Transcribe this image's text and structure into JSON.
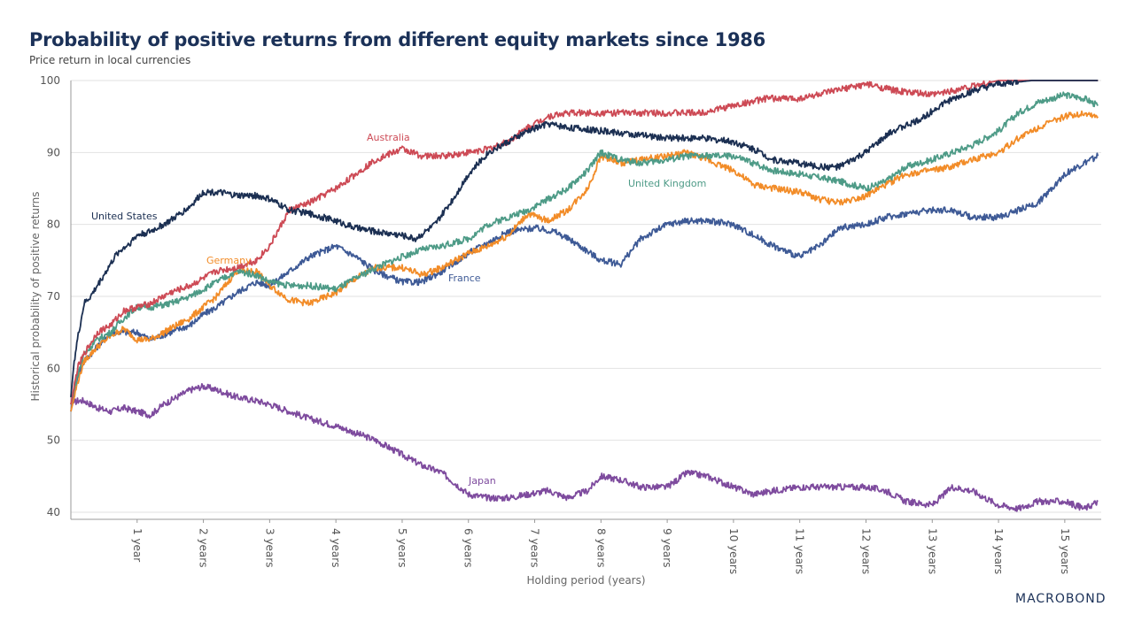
{
  "title": "Probability of positive returns from different equity markets since 1986",
  "subtitle": "Price return in local currencies",
  "logo": "MACROBOND",
  "chart_data": {
    "type": "line",
    "xlabel": "Holding period (years)",
    "ylabel": "Historical probability of positive returns",
    "xlim": [
      0,
      15.55
    ],
    "ylim": [
      40,
      100
    ],
    "yticks": [
      40,
      50,
      60,
      70,
      80,
      90,
      100
    ],
    "xticks": [
      1,
      2,
      3,
      4,
      5,
      6,
      7,
      8,
      9,
      10,
      11,
      12,
      13,
      14,
      15
    ],
    "xtick_labels": [
      "1 year",
      "2 years",
      "3 years",
      "4 years",
      "5 years",
      "6 years",
      "7 years",
      "8 years",
      "9 years",
      "10 years",
      "11 years",
      "12 years",
      "13 years",
      "14 years",
      "15 years"
    ],
    "grid": true,
    "series": [
      {
        "name": "United States",
        "color": "#1b2f52",
        "x": [
          0,
          0.05,
          0.1,
          0.2,
          0.3,
          0.5,
          0.7,
          0.9,
          1,
          1.2,
          1.5,
          1.8,
          2,
          2.2,
          2.5,
          2.8,
          3,
          3.3,
          3.6,
          4,
          4.3,
          4.6,
          5,
          5.2,
          5.5,
          5.8,
          6,
          6.3,
          6.6,
          6.9,
          7.2,
          7.5,
          8,
          8.5,
          9,
          9.5,
          10,
          10.3,
          10.6,
          11,
          11.3,
          11.6,
          12,
          12.4,
          12.8,
          13.2,
          13.6,
          14,
          14.5,
          15,
          15.5
        ],
        "y": [
          56,
          61,
          64,
          69,
          70,
          73,
          76,
          77.5,
          78.5,
          79,
          80.5,
          82.5,
          84.5,
          84.5,
          84,
          84,
          83.5,
          82,
          81.5,
          80.5,
          79.5,
          79,
          78.5,
          78,
          80,
          84,
          87,
          90,
          91.5,
          93,
          94,
          93.5,
          93,
          92.5,
          92,
          92,
          91.5,
          90.5,
          89,
          88.5,
          88,
          88,
          90,
          93,
          94.5,
          97,
          98.5,
          99.5,
          100,
          100,
          100
        ]
      },
      {
        "name": "Australia",
        "color": "#cd4a55",
        "x": [
          0,
          0.1,
          0.2,
          0.4,
          0.6,
          0.8,
          1,
          1.2,
          1.5,
          1.8,
          2,
          2.2,
          2.5,
          2.8,
          3,
          3.3,
          3.6,
          4,
          4.3,
          4.6,
          5,
          5.3,
          5.6,
          6,
          6.3,
          6.6,
          6.9,
          7.2,
          7.5,
          8,
          8.5,
          9,
          9.5,
          10,
          10.5,
          11,
          11.5,
          12,
          12.5,
          13,
          13.5,
          14,
          14.5,
          15,
          15.5
        ],
        "y": [
          55,
          60,
          62,
          65,
          66,
          68,
          68.5,
          69,
          70.5,
          71.5,
          72.5,
          73.5,
          74,
          75,
          77,
          82,
          83,
          85,
          87,
          89,
          90.5,
          89.5,
          89.5,
          90,
          90.5,
          91.5,
          93.5,
          95,
          95.5,
          95.5,
          95.5,
          95.5,
          95.5,
          96.5,
          97.5,
          97.5,
          98.5,
          99.5,
          98.5,
          98,
          99,
          100,
          100,
          100,
          100
        ]
      },
      {
        "name": "United Kingdom",
        "color": "#4e9b87",
        "x": [
          0,
          0.1,
          0.2,
          0.4,
          0.6,
          0.8,
          1,
          1.2,
          1.5,
          1.8,
          2,
          2.2,
          2.5,
          2.8,
          3,
          3.3,
          3.6,
          4,
          4.3,
          4.6,
          5,
          5.3,
          5.6,
          6,
          6.3,
          6.6,
          6.9,
          7.2,
          7.5,
          7.8,
          8,
          8.3,
          8.6,
          9,
          9.3,
          9.6,
          10,
          10.3,
          10.6,
          11,
          11.3,
          11.6,
          12,
          12.3,
          12.6,
          13,
          13.3,
          13.6,
          14,
          14.3,
          14.6,
          15,
          15.3,
          15.5
        ],
        "y": [
          55,
          59,
          62,
          64,
          65,
          67,
          68.5,
          68.5,
          69,
          70,
          71,
          72,
          73.5,
          73,
          72,
          71.5,
          71.5,
          71,
          72.5,
          74,
          75.5,
          76.5,
          77,
          78,
          80,
          81,
          82,
          83.5,
          85,
          87.5,
          90,
          89,
          88.5,
          89,
          89.5,
          89.5,
          89.5,
          88.5,
          87.5,
          87,
          86.5,
          86,
          85,
          86,
          88,
          89,
          90,
          91,
          93,
          95.5,
          97,
          98,
          97.5,
          96.5
        ]
      },
      {
        "name": "Germany",
        "color": "#f28c28",
        "x": [
          0,
          0.1,
          0.2,
          0.4,
          0.6,
          0.8,
          1,
          1.2,
          1.5,
          1.8,
          2,
          2.2,
          2.5,
          2.8,
          3,
          3.3,
          3.6,
          4,
          4.3,
          4.6,
          5,
          5.3,
          5.6,
          6,
          6.3,
          6.6,
          6.9,
          7.2,
          7.5,
          7.8,
          8,
          8.3,
          8.6,
          9,
          9.3,
          9.6,
          10,
          10.3,
          10.6,
          11,
          11.3,
          11.6,
          12,
          12.3,
          12.6,
          13,
          13.3,
          13.6,
          14,
          14.3,
          14.6,
          15,
          15.3,
          15.5
        ],
        "y": [
          54,
          58,
          61,
          63,
          64.5,
          65.5,
          64,
          64,
          65.5,
          67,
          68.5,
          70,
          73.5,
          73.5,
          71.5,
          69.5,
          69,
          70.5,
          72.5,
          74,
          74,
          73,
          74,
          76,
          77,
          78.5,
          81.5,
          80.5,
          82,
          85,
          89.5,
          88.5,
          89,
          89.5,
          90,
          89,
          87.5,
          85.5,
          85,
          84.5,
          83.5,
          83,
          84,
          85.5,
          87,
          87.5,
          88,
          89,
          90,
          92,
          93.5,
          95,
          95.5,
          95
        ]
      },
      {
        "name": "France",
        "color": "#3e5a96",
        "x": [
          0,
          0.1,
          0.2,
          0.4,
          0.6,
          0.8,
          1,
          1.2,
          1.5,
          1.8,
          2,
          2.2,
          2.5,
          2.8,
          3,
          3.3,
          3.6,
          4,
          4.3,
          4.6,
          5,
          5.3,
          5.6,
          6,
          6.3,
          6.6,
          7,
          7.3,
          7.6,
          8,
          8.3,
          8.6,
          9,
          9.3,
          9.6,
          10,
          10.3,
          10.6,
          11,
          11.3,
          11.6,
          12,
          12.3,
          12.6,
          13,
          13.3,
          13.6,
          14,
          14.3,
          14.6,
          15,
          15.3,
          15.5
        ],
        "y": [
          54,
          59,
          61,
          63,
          65,
          65,
          65,
          64,
          65,
          66,
          67.5,
          68.5,
          70.5,
          72,
          71.5,
          73.5,
          75.5,
          77,
          75.5,
          73.5,
          72,
          72,
          73.5,
          76,
          77.5,
          79,
          79.5,
          79,
          77.5,
          75,
          74.5,
          78,
          80,
          80.5,
          80.5,
          80,
          78.5,
          77,
          75.5,
          77,
          79.5,
          80,
          81,
          81.5,
          82,
          82,
          81,
          81,
          82,
          83,
          87,
          88.5,
          89.5
        ]
      },
      {
        "name": "Japan",
        "color": "#7e4b9e",
        "x": [
          0,
          0.1,
          0.2,
          0.4,
          0.6,
          0.8,
          1,
          1.2,
          1.4,
          1.6,
          1.8,
          2,
          2.2,
          2.5,
          2.8,
          3,
          3.3,
          3.6,
          4,
          4.3,
          4.6,
          5,
          5.3,
          5.6,
          6,
          6.3,
          6.6,
          6.9,
          7.2,
          7.5,
          7.8,
          8,
          8.3,
          8.6,
          9,
          9.3,
          9.6,
          10,
          10.3,
          10.6,
          11,
          11.3,
          11.6,
          12,
          12.3,
          12.6,
          13,
          13.3,
          13.6,
          14,
          14.3,
          14.6,
          15,
          15.3,
          15.5
        ],
        "y": [
          55,
          55.5,
          55.5,
          54.5,
          54,
          54.5,
          54,
          53.5,
          55,
          56,
          57,
          57.5,
          57,
          56,
          55.5,
          55,
          54,
          53,
          52,
          51,
          50,
          48,
          46.5,
          45.5,
          42.5,
          42,
          42,
          42.5,
          43,
          42,
          43,
          45,
          44.5,
          43.5,
          43.5,
          45.5,
          45,
          43.5,
          42.5,
          43,
          43.5,
          43.5,
          43.5,
          43.5,
          43,
          41.5,
          41,
          43.5,
          43,
          41,
          40.5,
          41.5,
          41.5,
          40.5,
          41.5
        ]
      }
    ],
    "annotations": [
      {
        "text": "United States",
        "series": "United States"
      },
      {
        "text": "Australia",
        "series": "Australia"
      },
      {
        "text": "United Kingdom",
        "series": "United Kingdom"
      },
      {
        "text": "Germany",
        "series": "Germany"
      },
      {
        "text": "France",
        "series": "France"
      },
      {
        "text": "Japan",
        "series": "Japan"
      }
    ]
  }
}
